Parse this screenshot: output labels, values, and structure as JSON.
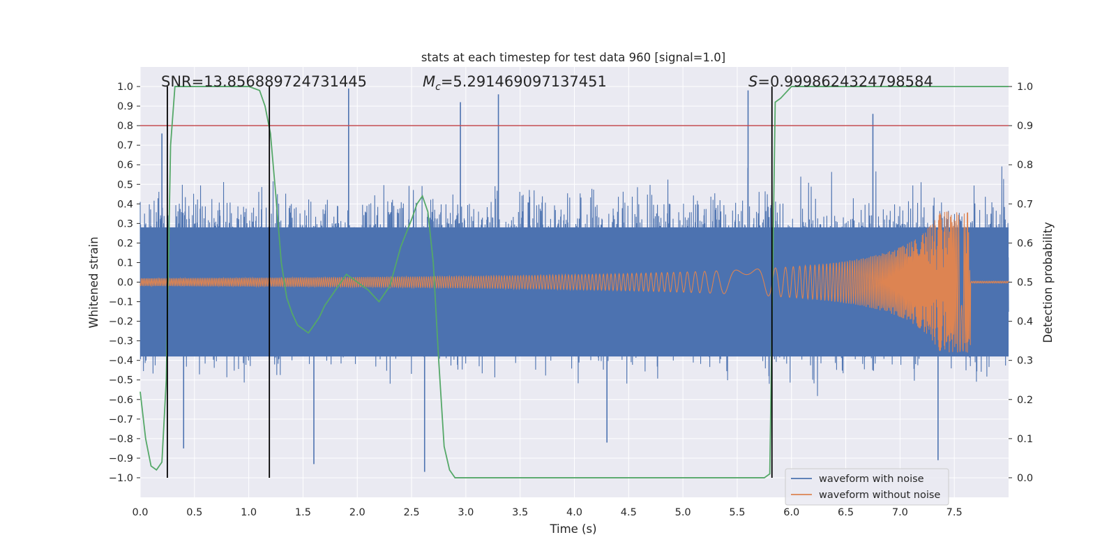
{
  "chart_data": {
    "type": "line",
    "title": "stats at each timestep for test data 960 [signal=1.0]",
    "xlabel": "Time (s)",
    "ylabel": "Whitened strain",
    "y2label": "Detection probability",
    "xlim": [
      0.0,
      8.0
    ],
    "ylim": [
      -1.1,
      1.1
    ],
    "y2lim": [
      -0.05,
      1.05
    ],
    "xticks": [
      "0.0",
      "0.5",
      "1.0",
      "1.5",
      "2.0",
      "2.5",
      "3.0",
      "3.5",
      "4.0",
      "4.5",
      "5.0",
      "5.5",
      "6.0",
      "6.5",
      "7.0",
      "7.5"
    ],
    "xtick_values": [
      0.0,
      0.5,
      1.0,
      1.5,
      2.0,
      2.5,
      3.0,
      3.5,
      4.0,
      4.5,
      5.0,
      5.5,
      6.0,
      6.5,
      7.0,
      7.5
    ],
    "yticks": [
      "1.0",
      "0.9",
      "0.8",
      "0.7",
      "0.6",
      "0.5",
      "0.4",
      "0.3",
      "0.2",
      "0.1",
      "0.0",
      "−0.1",
      "−0.2",
      "−0.3",
      "−0.4",
      "−0.5",
      "−0.6",
      "−0.7",
      "−0.8",
      "−0.9",
      "−1.0"
    ],
    "ytick_values": [
      1.0,
      0.9,
      0.8,
      0.7,
      0.6,
      0.5,
      0.4,
      0.3,
      0.2,
      0.1,
      0.0,
      -0.1,
      -0.2,
      -0.3,
      -0.4,
      -0.5,
      -0.6,
      -0.7,
      -0.8,
      -0.9,
      -1.0
    ],
    "y2ticks": [
      "1.0",
      "0.9",
      "0.8",
      "0.7",
      "0.6",
      "0.5",
      "0.4",
      "0.3",
      "0.2",
      "0.1",
      "0.0"
    ],
    "y2tick_values": [
      1.0,
      0.9,
      0.8,
      0.7,
      0.6,
      0.5,
      0.4,
      0.3,
      0.2,
      0.1,
      0.0
    ],
    "grid": true,
    "legend_position": "bottom-right",
    "series": [
      {
        "name": "waveform with noise",
        "color": "#4c72b0",
        "kind": "noise",
        "typical_amplitude": 0.38,
        "peaks": [
          {
            "x": 0.2,
            "y": 0.76
          },
          {
            "x": 1.92,
            "y": 0.99
          },
          {
            "x": 2.95,
            "y": 0.92
          },
          {
            "x": 3.3,
            "y": 0.96
          },
          {
            "x": 5.6,
            "y": 0.98
          },
          {
            "x": 6.75,
            "y": 0.86
          },
          {
            "x": 2.62,
            "y": -0.97
          },
          {
            "x": 7.35,
            "y": -0.91
          },
          {
            "x": 1.6,
            "y": -0.93
          },
          {
            "x": 0.4,
            "y": -0.85
          },
          {
            "x": 4.3,
            "y": -0.82
          }
        ]
      },
      {
        "name": "waveform without noise",
        "color": "#dd8452",
        "kind": "chirp",
        "amplitude_start": 0.02,
        "merger_time": 7.65,
        "merger_peak": 0.36
      },
      {
        "name": "detection probability",
        "color": "#55a868",
        "axis": "right",
        "x": [
          0.0,
          0.05,
          0.1,
          0.15,
          0.2,
          0.24,
          0.28,
          0.32,
          0.4,
          0.6,
          0.8,
          1.0,
          1.1,
          1.15,
          1.2,
          1.25,
          1.3,
          1.35,
          1.4,
          1.45,
          1.5,
          1.55,
          1.6,
          1.65,
          1.7,
          1.8,
          1.9,
          2.0,
          2.1,
          2.2,
          2.3,
          2.4,
          2.5,
          2.55,
          2.6,
          2.65,
          2.7,
          2.75,
          2.8,
          2.85,
          2.9,
          3.0,
          4.0,
          5.0,
          5.6,
          5.75,
          5.8,
          5.85,
          5.9,
          6.0,
          6.1,
          6.5,
          7.0,
          7.5,
          8.0
        ],
        "y": [
          0.22,
          0.1,
          0.03,
          0.02,
          0.04,
          0.25,
          0.85,
          1.0,
          1.0,
          1.0,
          1.0,
          1.0,
          0.99,
          0.95,
          0.88,
          0.72,
          0.55,
          0.46,
          0.42,
          0.39,
          0.38,
          0.37,
          0.39,
          0.41,
          0.44,
          0.48,
          0.52,
          0.5,
          0.48,
          0.45,
          0.49,
          0.59,
          0.66,
          0.7,
          0.72,
          0.68,
          0.55,
          0.3,
          0.08,
          0.02,
          0.0,
          0.0,
          0.0,
          0.0,
          0.0,
          0.0,
          0.01,
          0.96,
          0.97,
          1.0,
          1.0,
          1.0,
          1.0,
          1.0,
          1.0
        ]
      }
    ],
    "threshold": {
      "value": 0.9,
      "axis": "right",
      "color": "#c44e52"
    },
    "vlines": [
      0.25,
      1.19,
      5.82
    ],
    "vline_color": "#000000",
    "annotations": [
      {
        "text": "SNR=13.856889724731445",
        "x": 0.2,
        "y": 1.0
      },
      {
        "text_prefix": "M",
        "text_sub": "c",
        "text_suffix": "=5.291469097137451",
        "x": 2.6,
        "y": 1.0
      },
      {
        "text_prefix": "S",
        "text_suffix": "=0.9998624324798584",
        "x": 5.6,
        "y": 1.0
      }
    ]
  }
}
